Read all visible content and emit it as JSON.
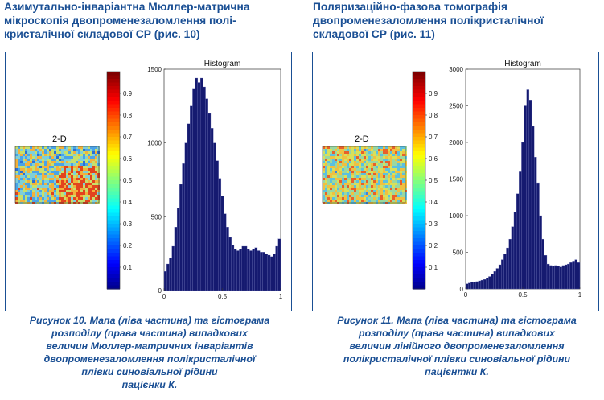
{
  "left": {
    "heading": "Азимутально-інваріантна Мюллер-матрична\nмікроскопія двопроменезаломлення полі-\nкристалічної складової СР (рис. 10)",
    "map_label": "2-D",
    "colorbar_ticks": [
      "0.1",
      "0.2",
      "0.3",
      "0.4",
      "0.5",
      "0.6",
      "0.7",
      "0.8",
      "0.9"
    ],
    "map_palette": [
      "#2a6fd6",
      "#4aa3e8",
      "#7fd0d8",
      "#c8e06a",
      "#f2b13c",
      "#e2441e"
    ],
    "caption": "Рисунок 10. Мапа (ліва частина) та гістограма\nрозподілу (права частина) випадкових\nвеличин Мюллер-матричних інваріантів\nдвопроменезаломлення полікристалічної\nплівки синовіальної рідини\nпацієнки К."
  },
  "right": {
    "heading": "Поляризаційно-фазова томографія\nдвопроменезаломлення полікристалічної\nскладової СР (рис. 11)",
    "map_label": "2-D",
    "colorbar_ticks": [
      "0.1",
      "0.2",
      "0.3",
      "0.4",
      "0.5",
      "0.6",
      "0.7",
      "0.8",
      "0.9"
    ],
    "map_palette": [
      "#3a86e0",
      "#5bc0e0",
      "#9ad8a0",
      "#d8e05a",
      "#f0c040",
      "#e8602a"
    ],
    "caption": "Рисунок 11. Мапа (ліва частина) та гістограма\nрозподілу (права частина) випадкових\nвеличин лінійного двопроменезаломлення\nполікристалічної плівки синовіальної рідини\nпацієнтки К."
  },
  "chart_data": [
    {
      "type": "bar",
      "title": "Histogram",
      "xlabel": "",
      "ylabel": "",
      "xlim": [
        0,
        1
      ],
      "ylim": [
        0,
        1500
      ],
      "xticks": [
        "0",
        "0.5",
        "1"
      ],
      "yticks": [
        "0",
        "500",
        "1000",
        "1500"
      ],
      "bar_color": "#151a70",
      "values": [
        130,
        180,
        220,
        300,
        430,
        560,
        720,
        860,
        1000,
        1130,
        1250,
        1370,
        1440,
        1410,
        1440,
        1380,
        1300,
        1200,
        1100,
        1000,
        880,
        760,
        640,
        520,
        430,
        360,
        310,
        280,
        270,
        280,
        300,
        300,
        280,
        270,
        280,
        290,
        270,
        260,
        260,
        250,
        240,
        230,
        250,
        300,
        350
      ]
    },
    {
      "type": "bar",
      "title": "Histogram",
      "xlabel": "",
      "ylabel": "",
      "xlim": [
        0,
        1
      ],
      "ylim": [
        0,
        3000
      ],
      "xticks": [
        "0",
        "0.5",
        "1"
      ],
      "yticks": [
        "0",
        "500",
        "1000",
        "1500",
        "2000",
        "2500",
        "3000"
      ],
      "bar_color": "#151a70",
      "values": [
        70,
        80,
        90,
        90,
        100,
        110,
        120,
        130,
        150,
        170,
        200,
        240,
        280,
        330,
        400,
        480,
        560,
        680,
        850,
        1050,
        1300,
        1600,
        2000,
        2500,
        2720,
        2580,
        2220,
        1800,
        1450,
        1000,
        680,
        460,
        340,
        320,
        310,
        320,
        310,
        300,
        320,
        330,
        340,
        360,
        380,
        400,
        360
      ]
    }
  ]
}
